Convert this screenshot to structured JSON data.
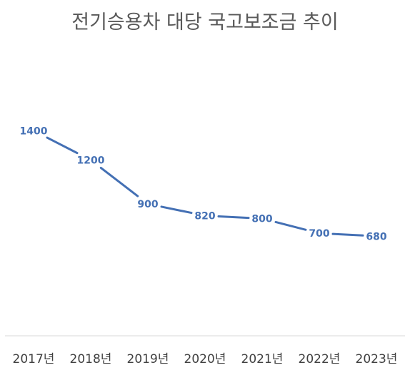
{
  "chart_data": {
    "type": "line",
    "title": "전기승용차 대당 국고보조금 추이",
    "xlabel": "",
    "ylabel": "",
    "categories": [
      "2017년",
      "2018년",
      "2019년",
      "2020년",
      "2021년",
      "2022년",
      "2023년"
    ],
    "series": [
      {
        "values": [
          1400,
          1200,
          900,
          820,
          800,
          700,
          680
        ],
        "color": "#4470b4"
      }
    ],
    "ylim": [
      0,
      2000
    ],
    "grid": false,
    "legend": "none",
    "axis_color": "#d9d9d9"
  }
}
